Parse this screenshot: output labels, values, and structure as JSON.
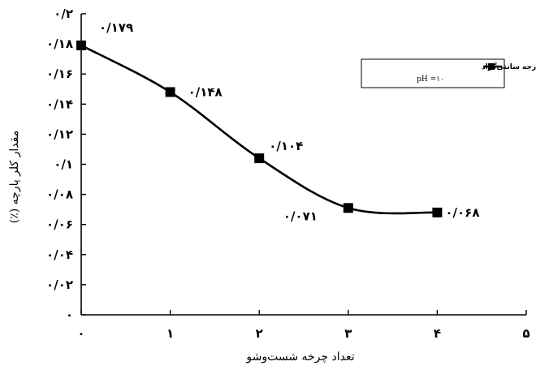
{
  "chart_data": {
    "type": "line",
    "title": "",
    "xlabel": "تعداد چرخه شست‌وشو",
    "ylabel": "مقدار کلر پارچه (٪)",
    "x": [
      0,
      1,
      2,
      3,
      4
    ],
    "xlim": [
      0,
      5
    ],
    "x_tick_labels": [
      "۰",
      "۱",
      "۲",
      "۳",
      "۴",
      "۵"
    ],
    "ylim": [
      0,
      0.2
    ],
    "y_ticks": [
      0,
      0.02,
      0.04,
      0.06,
      0.08,
      0.1,
      0.12,
      0.14,
      0.16,
      0.18,
      0.2
    ],
    "y_tick_labels": [
      "۰",
      "۰/۰۲",
      "۰/۰۴",
      "۰/۰۶",
      "۰/۰۸",
      "۰/۱",
      "۰/۱۲",
      "۰/۱۴",
      "۰/۱۶",
      "۰/۱۸",
      "۰/۲"
    ],
    "series": [
      {
        "name": "در دمای ۵۰ درجه سانتی‌گراد",
        "values": [
          0.179,
          0.148,
          0.104,
          0.071,
          0.068
        ],
        "data_labels": [
          "۰/۱۷۹",
          "۰/۱۴۸",
          "۰/۱۰۴",
          "۰/۰۷۱",
          "۰/۰۶۸"
        ],
        "color": "#000000",
        "marker": "square",
        "smooth": true
      }
    ],
    "legend": {
      "position": "top-right",
      "line1": "در دمای ۵۰ درجه سانتی‌گراد",
      "line2": "pH =۱۰"
    },
    "grid": false
  }
}
